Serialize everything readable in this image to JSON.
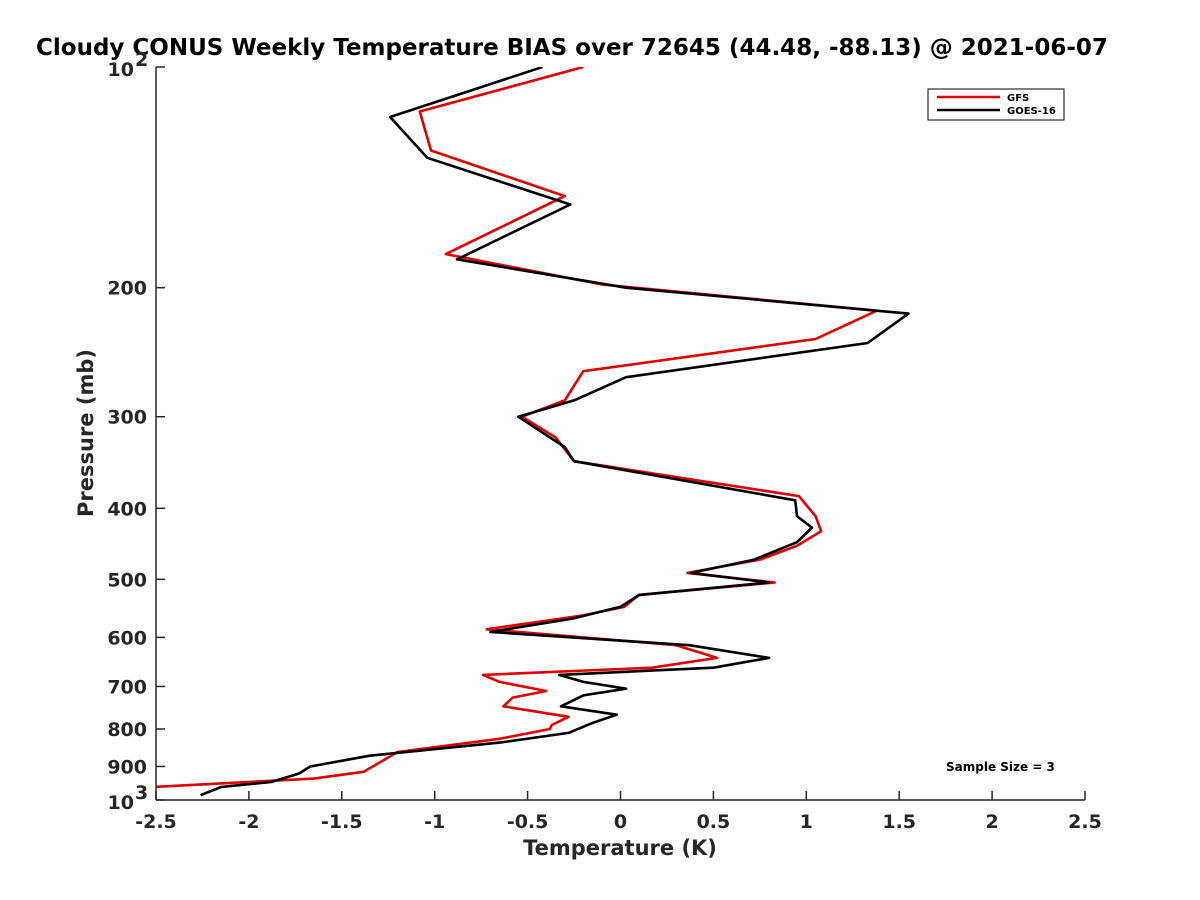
{
  "chart_data": {
    "type": "line",
    "title": "Cloudy CONUS Weekly Temperature BIAS over 72645 (44.48, -88.13) @ 2021-06-07",
    "xlabel": "Temperature (K)",
    "ylabel": "Pressure (mb)",
    "xlim": [
      -2.5,
      2.5
    ],
    "ylim": [
      100,
      1000
    ],
    "y_scale": "log",
    "y_direction": "reversed",
    "x_ticks": [
      "-2.5",
      "-2",
      "-1.5",
      "-1",
      "-0.5",
      "0",
      "0.5",
      "1",
      "1.5",
      "2",
      "2.5"
    ],
    "y_ticks": [
      {
        "value": 100,
        "base": "10",
        "exp": "2"
      },
      {
        "value": 200,
        "label": "200"
      },
      {
        "value": 300,
        "label": "300"
      },
      {
        "value": 400,
        "label": "400"
      },
      {
        "value": 500,
        "label": "500"
      },
      {
        "value": 600,
        "label": "600"
      },
      {
        "value": 700,
        "label": "700"
      },
      {
        "value": 800,
        "label": "800"
      },
      {
        "value": 900,
        "label": "900"
      },
      {
        "value": 1000,
        "base": "10",
        "exp": "3"
      }
    ],
    "grid": false,
    "legend_position": "top-right",
    "annotation": "Sample Size = 3",
    "series": [
      {
        "name": "GFS",
        "color": "#e00000",
        "points": [
          [
            -0.2,
            100
          ],
          [
            -1.08,
            115
          ],
          [
            -1.02,
            130
          ],
          [
            -0.3,
            150
          ],
          [
            -0.94,
            180
          ],
          [
            -0.1,
            198
          ],
          [
            1.38,
            215
          ],
          [
            1.05,
            235
          ],
          [
            -0.2,
            260
          ],
          [
            -0.3,
            285
          ],
          [
            -0.53,
            300
          ],
          [
            -0.35,
            320
          ],
          [
            -0.25,
            345
          ],
          [
            0.96,
            385
          ],
          [
            1.05,
            410
          ],
          [
            1.08,
            430
          ],
          [
            0.95,
            450
          ],
          [
            0.75,
            470
          ],
          [
            0.36,
            490
          ],
          [
            0.83,
            505
          ],
          [
            0.1,
            525
          ],
          [
            0.02,
            545
          ],
          [
            -0.2,
            560
          ],
          [
            -0.72,
            585
          ],
          [
            0.3,
            615
          ],
          [
            0.52,
            640
          ],
          [
            0.17,
            660
          ],
          [
            -0.74,
            675
          ],
          [
            -0.65,
            690
          ],
          [
            -0.4,
            710
          ],
          [
            -0.58,
            725
          ],
          [
            -0.63,
            745
          ],
          [
            -0.28,
            770
          ],
          [
            -0.37,
            790
          ],
          [
            -0.38,
            800
          ],
          [
            -0.65,
            825
          ],
          [
            -1.2,
            860
          ],
          [
            -1.3,
            890
          ],
          [
            -1.35,
            905
          ],
          [
            -1.38,
            915
          ],
          [
            -1.65,
            935
          ],
          [
            -2.52,
            960
          ]
        ]
      },
      {
        "name": "GOES-16",
        "color": "#000000",
        "points": [
          [
            -0.42,
            100
          ],
          [
            -1.24,
            117
          ],
          [
            -1.04,
            133
          ],
          [
            -0.27,
            154
          ],
          [
            -0.88,
            183
          ],
          [
            0.03,
            200
          ],
          [
            1.55,
            217
          ],
          [
            1.33,
            238
          ],
          [
            0.03,
            265
          ],
          [
            -0.25,
            285
          ],
          [
            -0.55,
            300
          ],
          [
            -0.3,
            330
          ],
          [
            -0.25,
            345
          ],
          [
            0.94,
            390
          ],
          [
            0.95,
            410
          ],
          [
            1.03,
            425
          ],
          [
            0.95,
            445
          ],
          [
            0.72,
            470
          ],
          [
            0.38,
            490
          ],
          [
            0.8,
            505
          ],
          [
            0.1,
            525
          ],
          [
            0.0,
            545
          ],
          [
            -0.25,
            565
          ],
          [
            -0.7,
            590
          ],
          [
            0.37,
            615
          ],
          [
            0.8,
            640
          ],
          [
            0.5,
            660
          ],
          [
            -0.33,
            675
          ],
          [
            -0.2,
            690
          ],
          [
            0.03,
            705
          ],
          [
            -0.2,
            720
          ],
          [
            -0.32,
            745
          ],
          [
            -0.02,
            765
          ],
          [
            -0.15,
            785
          ],
          [
            -0.28,
            810
          ],
          [
            -0.65,
            835
          ],
          [
            -1.35,
            870
          ],
          [
            -1.67,
            900
          ],
          [
            -1.73,
            920
          ],
          [
            -1.88,
            945
          ],
          [
            -2.15,
            960
          ],
          [
            -2.26,
            985
          ]
        ]
      }
    ]
  }
}
